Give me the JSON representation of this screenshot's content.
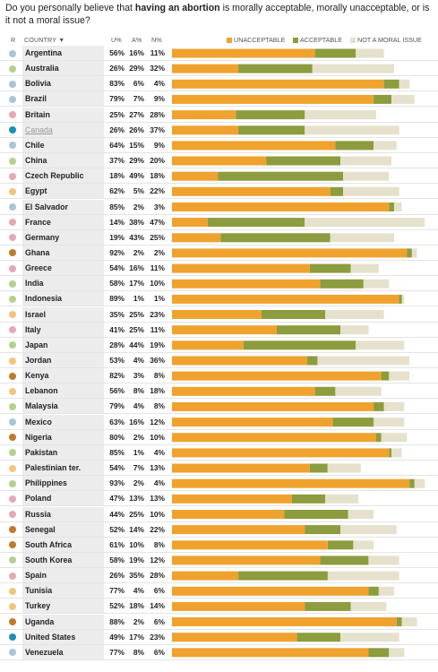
{
  "question": {
    "prefix": "Do you personally believe that ",
    "emphasis": "having an abortion",
    "suffix": " is morally acceptable, morally unacceptable, or is it not a moral issue?"
  },
  "columns": {
    "region": "R",
    "country": "COUNTRY ▼",
    "u": "U%",
    "a": "A%",
    "n": "N%"
  },
  "colors": {
    "unacceptable": "#f0a22e",
    "acceptable": "#8c9c3e",
    "not_moral": "#e6e1cc",
    "region_latin_america": "#a9c6d6",
    "region_europe": "#e5a9b6",
    "region_north_america": "#1b8fb6",
    "region_asia": "#b7d08f",
    "region_middle_east": "#f3c57a",
    "region_africa": "#c07a2c"
  },
  "chart_data": {
    "type": "bar",
    "stacked": true,
    "orientation": "horizontal",
    "title": "",
    "xlabel": "",
    "ylabel": "",
    "xlim": [
      0,
      100
    ],
    "legend_position": "top-right",
    "grid": false,
    "categories": [
      "Argentina",
      "Australia",
      "Bolivia",
      "Brazil",
      "Britain",
      "Canada",
      "Chile",
      "China",
      "Czech Republic",
      "Egypt",
      "El Salvador",
      "France",
      "Germany",
      "Ghana",
      "Greece",
      "India",
      "Indonesia",
      "Israel",
      "Italy",
      "Japan",
      "Jordan",
      "Kenya",
      "Lebanon",
      "Malaysia",
      "Mexico",
      "Nigeria",
      "Pakistan",
      "Palestinian ter.",
      "Philippines",
      "Poland",
      "Russia",
      "Senegal",
      "South Africa",
      "South Korea",
      "Spain",
      "Tunisia",
      "Turkey",
      "Uganda",
      "United States",
      "Venezuela"
    ],
    "region": [
      "latin_america",
      "asia",
      "latin_america",
      "latin_america",
      "europe",
      "north_america",
      "latin_america",
      "asia",
      "europe",
      "middle_east",
      "latin_america",
      "europe",
      "europe",
      "africa",
      "europe",
      "asia",
      "asia",
      "middle_east",
      "europe",
      "asia",
      "middle_east",
      "africa",
      "middle_east",
      "asia",
      "latin_america",
      "africa",
      "asia",
      "middle_east",
      "asia",
      "europe",
      "europe",
      "africa",
      "africa",
      "asia",
      "europe",
      "middle_east",
      "middle_east",
      "africa",
      "north_america",
      "latin_america"
    ],
    "series": [
      {
        "name": "UNACCEPTABLE",
        "values": [
          56,
          26,
          83,
          79,
          25,
          26,
          64,
          37,
          18,
          62,
          85,
          14,
          19,
          92,
          54,
          58,
          89,
          35,
          41,
          28,
          53,
          82,
          56,
          79,
          63,
          80,
          85,
          54,
          93,
          47,
          44,
          52,
          61,
          58,
          26,
          77,
          52,
          88,
          49,
          77
        ]
      },
      {
        "name": "ACCEPTABLE",
        "values": [
          16,
          29,
          6,
          7,
          27,
          26,
          15,
          29,
          49,
          5,
          2,
          38,
          43,
          2,
          16,
          17,
          1,
          25,
          25,
          44,
          4,
          3,
          8,
          4,
          16,
          2,
          1,
          7,
          2,
          13,
          25,
          14,
          10,
          19,
          35,
          4,
          18,
          2,
          17,
          8
        ]
      },
      {
        "name": "NOT A MORAL ISSUE",
        "values": [
          11,
          32,
          4,
          9,
          28,
          37,
          9,
          20,
          18,
          22,
          3,
          47,
          25,
          2,
          11,
          10,
          1,
          23,
          11,
          19,
          36,
          8,
          18,
          8,
          12,
          10,
          4,
          13,
          4,
          13,
          10,
          22,
          8,
          12,
          28,
          6,
          14,
          6,
          23,
          6
        ]
      }
    ],
    "highlighted": [
      "Canada"
    ]
  }
}
